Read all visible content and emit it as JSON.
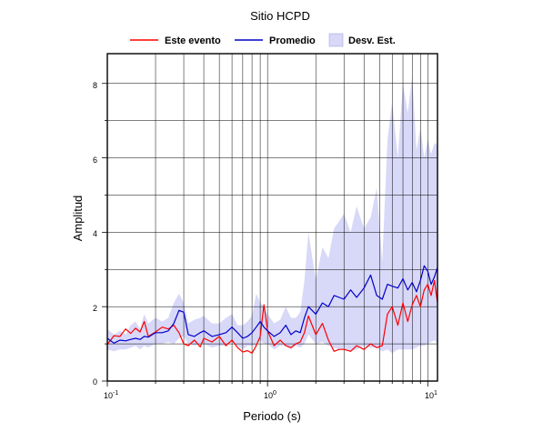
{
  "chart_data": {
    "type": "line",
    "title": "Sitio HCPD",
    "xlabel": "Periodo (s)",
    "ylabel": "Amplitud",
    "x_scale": "log",
    "xlim": [
      0.1,
      11.5
    ],
    "ylim": [
      0,
      8.8
    ],
    "x_ticks": [
      {
        "base": "10",
        "exp": "-1"
      },
      {
        "base": "10",
        "exp": "0"
      },
      {
        "base": "10",
        "exp": "1"
      }
    ],
    "y_ticks": [
      "0",
      "2",
      "4",
      "6",
      "8"
    ],
    "grid": true,
    "legend": {
      "position": "top",
      "entries": [
        "Este evento",
        "Promedio",
        "Desv. Est."
      ]
    },
    "colors": {
      "event": "#ff0000",
      "mean": "#0000cc",
      "band": "#d8d8f8"
    },
    "x": [
      0.1,
      0.11,
      0.12,
      0.13,
      0.14,
      0.15,
      0.16,
      0.17,
      0.18,
      0.2,
      0.22,
      0.24,
      0.26,
      0.28,
      0.3,
      0.32,
      0.35,
      0.38,
      0.4,
      0.45,
      0.5,
      0.55,
      0.6,
      0.65,
      0.7,
      0.75,
      0.8,
      0.85,
      0.9,
      0.95,
      1.0,
      1.1,
      1.2,
      1.3,
      1.4,
      1.5,
      1.6,
      1.7,
      1.8,
      2.0,
      2.2,
      2.4,
      2.6,
      2.8,
      3.0,
      3.3,
      3.6,
      4.0,
      4.4,
      4.8,
      5.2,
      5.6,
      6.0,
      6.5,
      7.0,
      7.5,
      8.0,
      8.5,
      9.0,
      9.5,
      10.0,
      10.5,
      11.0,
      11.5
    ],
    "series": [
      {
        "name": "Este evento",
        "values": [
          0.98,
          1.22,
          1.2,
          1.4,
          1.28,
          1.42,
          1.32,
          1.6,
          1.2,
          1.32,
          1.45,
          1.4,
          1.5,
          1.3,
          1.0,
          0.95,
          1.1,
          0.92,
          1.15,
          1.05,
          1.2,
          0.95,
          1.1,
          0.9,
          0.78,
          0.82,
          0.75,
          0.95,
          1.2,
          2.05,
          1.35,
          0.95,
          1.1,
          0.95,
          0.9,
          1.0,
          1.05,
          1.3,
          1.75,
          1.25,
          1.55,
          1.1,
          0.8,
          0.85,
          0.85,
          0.8,
          0.95,
          0.85,
          1.0,
          0.9,
          0.95,
          1.8,
          2.0,
          1.5,
          2.1,
          1.6,
          2.05,
          2.3,
          2.0,
          2.45,
          2.6,
          2.3,
          2.7,
          2.1
        ]
      },
      {
        "name": "Promedio",
        "values": [
          1.15,
          1.02,
          1.1,
          1.08,
          1.12,
          1.15,
          1.12,
          1.2,
          1.18,
          1.3,
          1.3,
          1.35,
          1.55,
          1.9,
          1.85,
          1.25,
          1.2,
          1.3,
          1.35,
          1.2,
          1.25,
          1.3,
          1.45,
          1.3,
          1.15,
          1.2,
          1.3,
          1.45,
          1.6,
          1.45,
          1.35,
          1.2,
          1.3,
          1.5,
          1.25,
          1.35,
          1.3,
          1.7,
          2.0,
          1.8,
          2.1,
          2.0,
          2.3,
          2.25,
          2.2,
          2.45,
          2.25,
          2.5,
          2.85,
          2.3,
          2.2,
          2.6,
          2.55,
          2.5,
          2.75,
          2.45,
          2.65,
          2.4,
          2.7,
          3.1,
          2.95,
          2.6,
          2.8,
          3.05
        ]
      },
      {
        "name": "Desv. Est.",
        "role": "band",
        "upper": [
          1.4,
          1.25,
          1.35,
          1.25,
          1.5,
          1.6,
          1.4,
          1.8,
          1.55,
          1.7,
          1.6,
          1.7,
          2.1,
          2.35,
          2.1,
          1.55,
          1.65,
          1.7,
          1.75,
          1.55,
          1.55,
          1.7,
          1.8,
          1.5,
          1.5,
          1.6,
          1.75,
          2.35,
          2.1,
          2.0,
          1.8,
          1.55,
          1.65,
          2.0,
          1.7,
          1.7,
          1.85,
          2.7,
          4.0,
          2.7,
          3.6,
          3.3,
          4.1,
          4.3,
          4.5,
          4.0,
          4.7,
          4.1,
          4.4,
          5.2,
          3.2,
          6.5,
          7.5,
          6.0,
          8.0,
          7.2,
          8.2,
          6.2,
          6.8,
          6.0,
          6.5,
          6.1,
          6.4,
          6.35
        ]
      },
      {
        "name": "Desv. Est. lower",
        "role": "band-lower",
        "values": [
          0.85,
          0.8,
          0.85,
          0.85,
          0.9,
          0.95,
          0.85,
          0.95,
          0.9,
          1.0,
          1.0,
          1.05,
          1.0,
          1.15,
          1.2,
          1.0,
          0.95,
          1.0,
          1.0,
          0.9,
          0.95,
          0.95,
          1.05,
          0.95,
          0.85,
          0.95,
          0.95,
          0.95,
          1.1,
          1.0,
          1.0,
          0.85,
          0.95,
          0.95,
          0.85,
          0.95,
          0.9,
          1.0,
          1.25,
          1.0,
          1.05,
          0.95,
          0.9,
          0.85,
          0.85,
          0.8,
          0.85,
          0.95,
          0.9,
          0.9,
          0.8,
          0.85,
          0.75,
          0.85,
          0.85,
          0.85,
          0.85,
          0.9,
          0.95,
          0.95,
          1.0,
          1.05,
          1.1,
          1.0
        ]
      }
    ]
  }
}
